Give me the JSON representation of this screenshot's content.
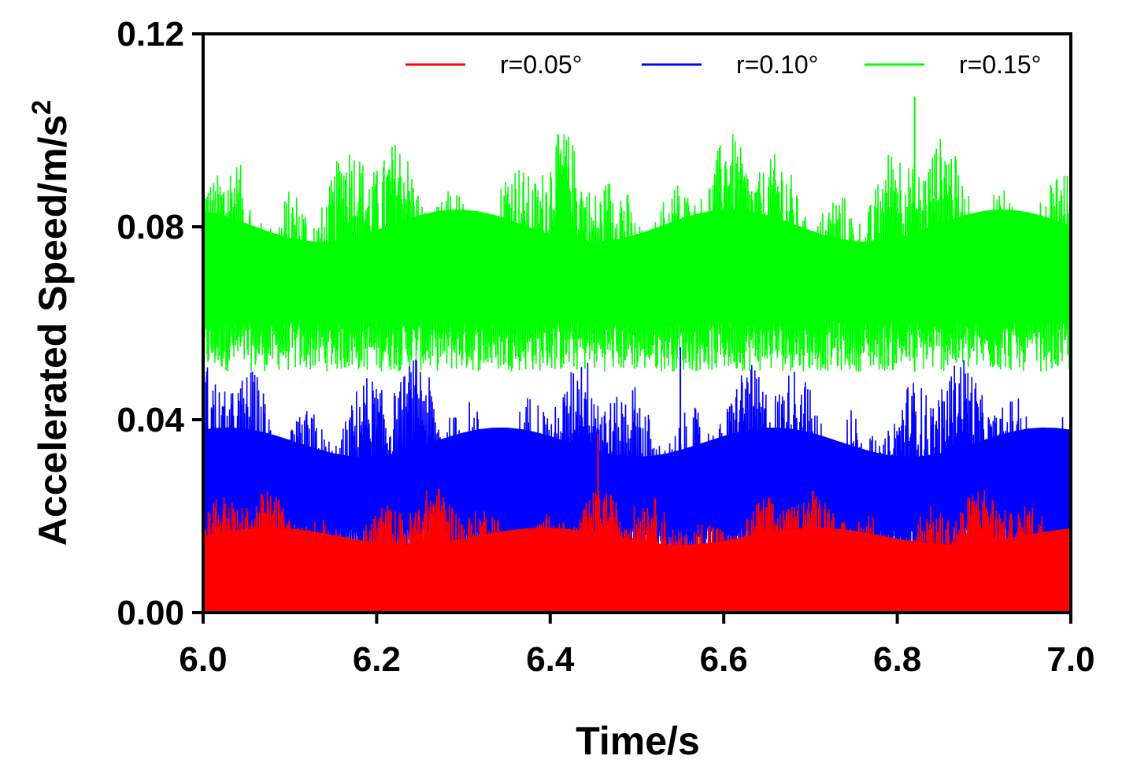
{
  "chart_data": {
    "type": "line",
    "title": "",
    "xlabel": "Time/s",
    "ylabel": "Accelerated Speed/m/s",
    "ylabel_superscript": "2",
    "xlim": [
      6.0,
      7.0
    ],
    "ylim": [
      0.0,
      0.12
    ],
    "x_ticks": [
      "6.0",
      "6.2",
      "6.4",
      "6.6",
      "6.8",
      "7.0"
    ],
    "y_ticks": [
      "0.00",
      "0.04",
      "0.08",
      "0.12"
    ],
    "grid": false,
    "legend_position": "top-right",
    "series": [
      {
        "name": "r=0.05°",
        "color": "#ff0000",
        "baseline": 0.0,
        "typical_low": 0.0,
        "typical_high": 0.022,
        "peak": 0.037,
        "peak_x": 6.455
      },
      {
        "name": "r=0.10°",
        "color": "#0000ff",
        "baseline": 0.0,
        "typical_low": 0.008,
        "typical_high": 0.046,
        "peak": 0.055,
        "peak_x": 6.55
      },
      {
        "name": "r=0.15°",
        "color": "#00ff00",
        "baseline": 0.0,
        "typical_low": 0.05,
        "typical_high": 0.092,
        "peak": 0.107,
        "peak_x": 6.82
      }
    ]
  }
}
